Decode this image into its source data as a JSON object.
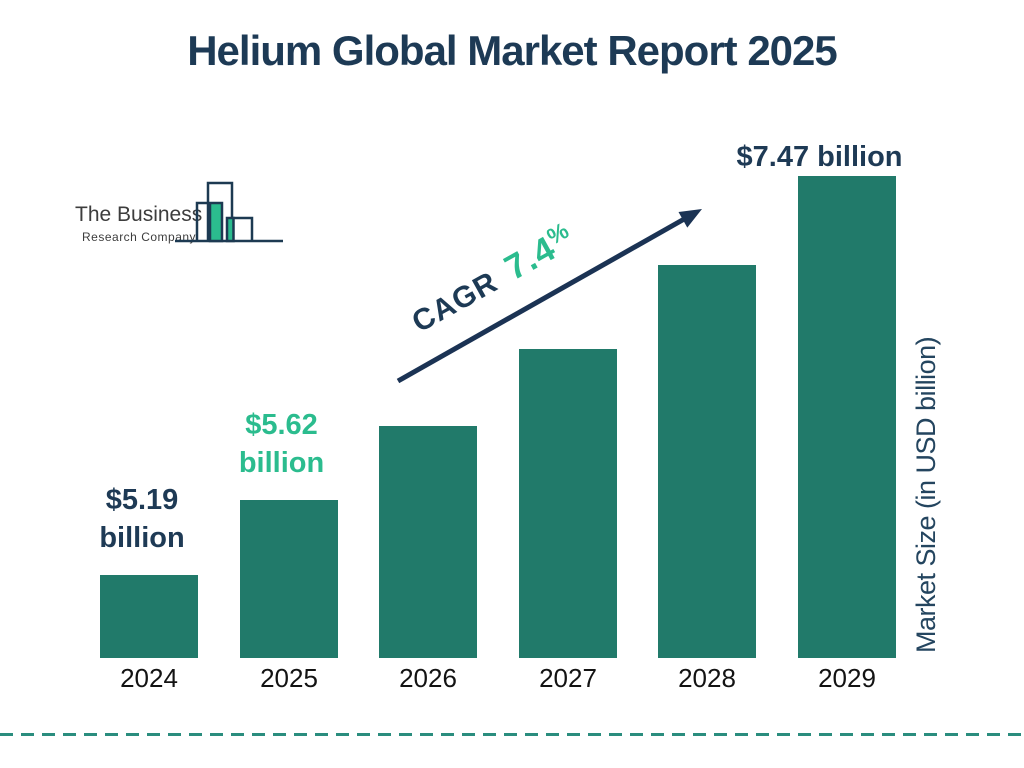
{
  "title": "Helium Global Market Report 2025",
  "logo": {
    "line1": "The Business",
    "line2": "Research Company"
  },
  "cagr": {
    "prefix": "CAGR",
    "value": "7.4",
    "percent": "%"
  },
  "y_axis_label": "Market Size (in USD billion)",
  "colors": {
    "bar": "#217a6a",
    "navy": "#1d3a55",
    "green": "#2bbc8e",
    "dashed_line": "#2a8d7e"
  },
  "chart_data": {
    "type": "bar",
    "categories": [
      "2024",
      "2025",
      "2026",
      "2027",
      "2028",
      "2029"
    ],
    "values": [
      5.19,
      5.62,
      6.04,
      6.48,
      6.96,
      7.47
    ],
    "unit": "USD billion",
    "title": "Helium Global Market Report 2025",
    "ylabel": "Market Size (in USD billion)",
    "cagr_annotation": "CAGR 7.4%",
    "bar_labels": [
      {
        "index": 0,
        "lines": [
          "$5.19",
          "billion"
        ],
        "color_role": "navy"
      },
      {
        "index": 1,
        "lines": [
          "$5.62",
          "billion"
        ],
        "color_role": "green"
      },
      {
        "index": 5,
        "lines": [
          "$7.47 billion"
        ],
        "color_role": "navy"
      }
    ],
    "legend": null,
    "grid": false
  }
}
